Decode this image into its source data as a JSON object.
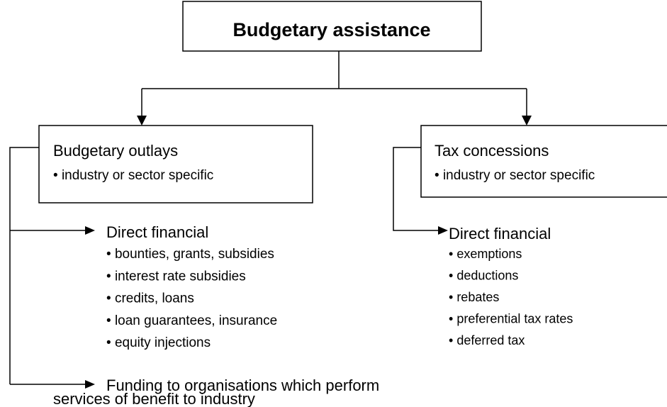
{
  "title": "Budgetary assistance",
  "branches": [
    {
      "title": "Budgetary outlays",
      "subtitle": "industry or sector specific",
      "groups": [
        {
          "title": "Direct financial",
          "items": [
            "bounties, grants, subsidies",
            "interest rate subsidies",
            "credits, loans",
            "loan guarantees, insurance",
            "equity injections"
          ]
        },
        {
          "lines": [
            "Funding to organisations which perform",
            "services of benefit to industry"
          ]
        }
      ]
    },
    {
      "title": "Tax concessions",
      "subtitle": "industry or sector specific",
      "groups": [
        {
          "title": "Direct financial",
          "items": [
            "exemptions",
            "deductions",
            "rebates",
            "preferential tax rates",
            "deferred tax"
          ]
        }
      ]
    }
  ]
}
